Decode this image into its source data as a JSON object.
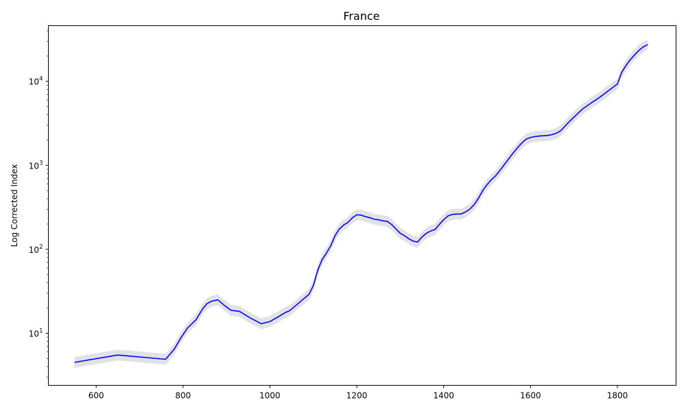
{
  "chart_data": {
    "type": "line",
    "title": "France",
    "xlabel": "",
    "ylabel": "Log Corrected Index",
    "y_scale": "log",
    "xlim": [
      490,
      1935
    ],
    "ylim": [
      2.4,
      46000
    ],
    "x_ticks": [
      600,
      800,
      1000,
      1200,
      1400,
      1600,
      1800
    ],
    "y_ticks": [
      10,
      100,
      1000,
      10000
    ],
    "y_tick_labels": [
      {
        "base": "10",
        "exp": "1"
      },
      {
        "base": "10",
        "exp": "2"
      },
      {
        "base": "10",
        "exp": "3"
      },
      {
        "base": "10",
        "exp": "4"
      }
    ],
    "grid": false,
    "legend": "none",
    "line_color": "#0000ff",
    "band_color": "#d9d9e0",
    "series": [
      {
        "x": [
          550,
          650,
          760,
          780,
          795,
          810,
          830,
          845,
          855,
          865,
          880,
          895,
          910,
          930,
          955,
          980,
          1000,
          1020,
          1035,
          1045,
          1060,
          1075,
          1090,
          1100,
          1110,
          1120,
          1130,
          1140,
          1150,
          1160,
          1170,
          1180,
          1190,
          1200,
          1210,
          1220,
          1230,
          1240,
          1250,
          1260,
          1270,
          1280,
          1290,
          1300,
          1310,
          1320,
          1330,
          1340,
          1350,
          1360,
          1370,
          1380,
          1390,
          1400,
          1410,
          1420,
          1430,
          1440,
          1450,
          1460,
          1470,
          1480,
          1490,
          1500,
          1510,
          1520,
          1530,
          1540,
          1550,
          1560,
          1570,
          1580,
          1590,
          1600,
          1610,
          1620,
          1630,
          1640,
          1650,
          1660,
          1670,
          1680,
          1690,
          1700,
          1710,
          1720,
          1730,
          1740,
          1750,
          1760,
          1770,
          1780,
          1790,
          1800,
          1810,
          1820,
          1830,
          1840,
          1850,
          1860,
          1870
        ],
        "y": [
          4.5,
          5.5,
          4.9,
          6.5,
          8.8,
          11.5,
          14.5,
          19.5,
          22.5,
          24,
          25,
          21.5,
          18.8,
          18.2,
          15.2,
          13,
          13.8,
          15.8,
          17.6,
          18.5,
          21.5,
          25,
          29,
          37,
          56,
          75,
          90,
          110,
          145,
          175,
          195,
          210,
          238,
          258,
          255,
          245,
          238,
          228,
          225,
          218,
          215,
          198,
          175,
          155,
          145,
          133,
          125,
          122,
          140,
          155,
          165,
          172,
          198,
          225,
          250,
          260,
          263,
          263,
          278,
          300,
          340,
          405,
          500,
          590,
          675,
          755,
          875,
          1025,
          1200,
          1400,
          1620,
          1850,
          2050,
          2150,
          2200,
          2230,
          2250,
          2270,
          2320,
          2420,
          2600,
          2950,
          3350,
          3750,
          4200,
          4700,
          5100,
          5550,
          6000,
          6500,
          7100,
          7800,
          8500,
          9300,
          12800,
          15500,
          18200,
          20800,
          23500,
          25800,
          27500
        ]
      }
    ]
  }
}
